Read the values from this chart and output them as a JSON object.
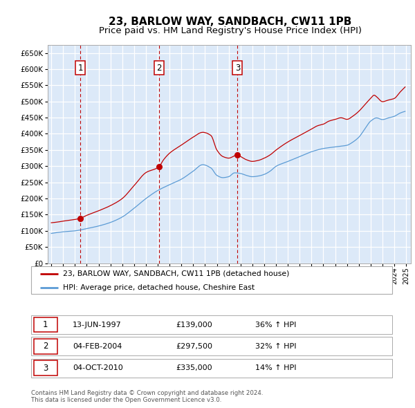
{
  "title": "23, BARLOW WAY, SANDBACH, CW11 1PB",
  "subtitle": "Price paid vs. HM Land Registry's House Price Index (HPI)",
  "ylim": [
    0,
    675000
  ],
  "yticks": [
    0,
    50000,
    100000,
    150000,
    200000,
    250000,
    300000,
    350000,
    400000,
    450000,
    500000,
    550000,
    600000,
    650000
  ],
  "plot_bg": "#dce9f8",
  "grid_color": "#ffffff",
  "title_fontsize": 11,
  "subtitle_fontsize": 9.5,
  "legend_label_hpi": "23, BARLOW WAY, SANDBACH, CW11 1PB (detached house)",
  "legend_label_avg": "HPI: Average price, detached house, Cheshire East",
  "sale_points": [
    {
      "date": 1997.46,
      "price": 139000,
      "label": "1"
    },
    {
      "date": 2004.09,
      "price": 297500,
      "label": "2"
    },
    {
      "date": 2010.75,
      "price": 335000,
      "label": "3"
    }
  ],
  "table_rows": [
    {
      "num": "1",
      "date": "13-JUN-1997",
      "price": "£139,000",
      "change": "36% ↑ HPI"
    },
    {
      "num": "2",
      "date": "04-FEB-2004",
      "price": "£297,500",
      "change": "32% ↑ HPI"
    },
    {
      "num": "3",
      "date": "04-OCT-2010",
      "price": "£335,000",
      "change": "14% ↑ HPI"
    }
  ],
  "footer": "Contains HM Land Registry data © Crown copyright and database right 2024.\nThis data is licensed under the Open Government Licence v3.0.",
  "hpi_color": "#c00000",
  "avg_color": "#5b9bd5",
  "vline_color": "#c00000",
  "xstart": 1995,
  "xend": 2025
}
